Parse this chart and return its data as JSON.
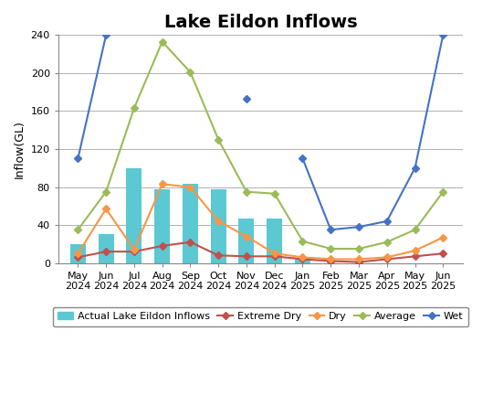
{
  "title": "Lake Eildon Inflows",
  "ylabel": "Inflow(GL)",
  "categories": [
    "May\n2024",
    "Jun\n2024",
    "Jul\n2024",
    "Aug\n2024",
    "Sep\n2024",
    "Oct\n2024",
    "Nov\n2024",
    "Dec\n2024",
    "Jan\n2025",
    "Feb\n2025",
    "Mar\n2025",
    "Apr\n2025",
    "May\n2025",
    "Jun\n2025"
  ],
  "bar_values": [
    20,
    30,
    100,
    78,
    83,
    78,
    47,
    47,
    5,
    null,
    null,
    null,
    null,
    null
  ],
  "extreme_dry": [
    6,
    12,
    12,
    18,
    22,
    8,
    7,
    7,
    4,
    2,
    1,
    4,
    7,
    10
  ],
  "dry": [
    10,
    57,
    14,
    83,
    80,
    44,
    28,
    10,
    6,
    4,
    4,
    6,
    13,
    27
  ],
  "average": [
    35,
    75,
    163,
    233,
    201,
    130,
    75,
    73,
    23,
    15,
    15,
    22,
    35,
    75
  ],
  "wet": [
    110,
    240,
    null,
    null,
    null,
    null,
    173,
    null,
    110,
    35,
    38,
    44,
    100,
    240
  ],
  "bar_color": "#5bc8d2",
  "extreme_dry_color": "#c0504d",
  "dry_color": "#f79646",
  "average_color": "#9bbb59",
  "wet_color": "#4472c4",
  "ylim": [
    0,
    240
  ],
  "yticks": [
    0,
    40,
    80,
    120,
    160,
    200,
    240
  ],
  "background_color": "#ffffff",
  "grid_color": "#b0b0b0",
  "title_fontsize": 14,
  "axis_label_fontsize": 9,
  "tick_fontsize": 8,
  "legend_fontsize": 8
}
